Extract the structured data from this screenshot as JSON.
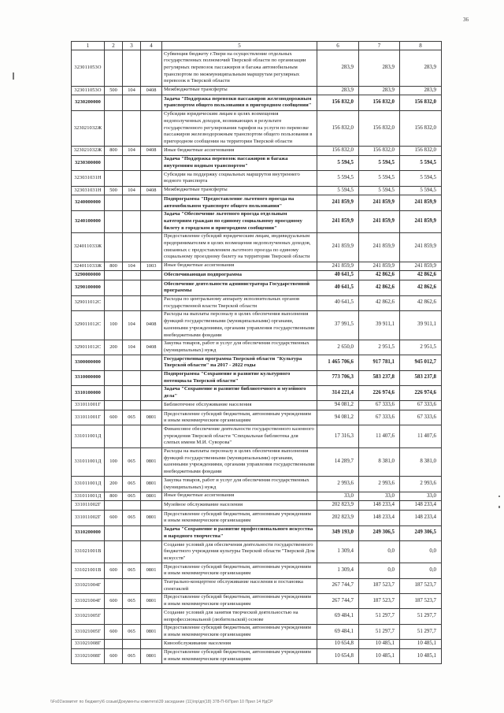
{
  "page_number": "36",
  "footer_path": "\\\\Fs01\\комитет по бюджету\\6 созыв\\Документы комитета\\39 заседание (11)\\пр\\дп(18) 378-П-6\\Прил 10 Прил 14 НдСР",
  "table": {
    "headers": [
      "1",
      "2",
      "3",
      "4",
      "5",
      "6",
      "7",
      "8"
    ],
    "rows": [
      {
        "code": "323011053О",
        "k2": "",
        "k3": "",
        "k4": "",
        "desc": "Субвенция бюджету г.Твери на осуществление отдельных государственных полномочий Тверской области по организации регулярных перевозок пассажиров и багажа автомобильным транспортом по межмуниципальным маршрутам регулярных перевозок в Тверской области",
        "a6": "283,9",
        "a7": "283,9",
        "a8": "283,9",
        "bold": false
      },
      {
        "code": "323011053О",
        "k2": "500",
        "k3": "104",
        "k4": "0408",
        "desc": "Межбюджетные трансферты",
        "a6": "283,9",
        "a7": "283,9",
        "a8": "283,9",
        "bold": false
      },
      {
        "code": "3230200000",
        "k2": "",
        "k3": "",
        "k4": "",
        "desc": "Задача \"Поддержка перевозки пассажиров железнодорожным транспортом общего пользования в пригородном сообщении\"",
        "a6": "156 832,0",
        "a7": "156 832,0",
        "a8": "156 832,0",
        "bold": true
      },
      {
        "code": "323021032Ж",
        "k2": "",
        "k3": "",
        "k4": "",
        "desc": "Субсидии юридическим лицам в целях возмещения недополученных доходов, возникающих в результате государственного регулирования тарифов на услуги по перевозке пассажиров железнодорожным транспортом общего пользования в пригородном сообщении на территории Тверской области",
        "a6": "156 832,0",
        "a7": "156 832,0",
        "a8": "156 832,0",
        "bold": false
      },
      {
        "code": "323021032Ж",
        "k2": "800",
        "k3": "104",
        "k4": "0408",
        "desc": "Иные бюджетные ассигнования",
        "a6": "156 832,0",
        "a7": "156 832,0",
        "a8": "156 832,0",
        "bold": false
      },
      {
        "code": "3230300000",
        "k2": "",
        "k3": "",
        "k4": "",
        "desc": "Задача \"Поддержка перевозок пассажиров и багажа внутренним водным транспортом\"",
        "a6": "5 594,5",
        "a7": "5 594,5",
        "a8": "5 594,5",
        "bold": true
      },
      {
        "code": "323031031Н",
        "k2": "",
        "k3": "",
        "k4": "",
        "desc": "Субсидии на поддержку социальных маршрутов внутреннего водного транспорта",
        "a6": "5 594,5",
        "a7": "5 594,5",
        "a8": "5 594,5",
        "bold": false
      },
      {
        "code": "323031031Н",
        "k2": "500",
        "k3": "104",
        "k4": "0408",
        "desc": "Межбюджетные трансферты",
        "a6": "5 594,5",
        "a7": "5 594,5",
        "a8": "5 594,5",
        "bold": false
      },
      {
        "code": "3240000000",
        "k2": "",
        "k3": "",
        "k4": "",
        "desc": "Подпрограмма \"Предоставление льготного проезда на автомобильном транспорте общего пользования\"",
        "a6": "241 859,9",
        "a7": "241 859,9",
        "a8": "241 859,9",
        "bold": true
      },
      {
        "code": "3240100000",
        "k2": "",
        "k3": "",
        "k4": "",
        "desc": "Задача \"Обеспечение льготного проезда отдельным категориям граждан по единому социальному проездному билету в городском и пригородном сообщении\"",
        "a6": "241 859,9",
        "a7": "241 859,9",
        "a8": "241 859,9",
        "bold": true
      },
      {
        "code": "324011033Ж",
        "k2": "",
        "k3": "",
        "k4": "",
        "desc": "Предоставление субсидий юридическим лицам, индивидуальным предпринимателям в целях возмещения недополученных доходов, связанных с предоставлением льготного проезда по единому социальному проездному билету на территории Тверской области",
        "a6": "241 859,9",
        "a7": "241 859,9",
        "a8": "241 859,9",
        "bold": false
      },
      {
        "code": "324011033Ж",
        "k2": "800",
        "k3": "104",
        "k4": "1003",
        "desc": "Иные бюджетные ассигнования",
        "a6": "241 859,9",
        "a7": "241 859,9",
        "a8": "241 859,9",
        "bold": false
      },
      {
        "code": "3290000000",
        "k2": "",
        "k3": "",
        "k4": "",
        "desc": "Обеспечивающая подпрограмма",
        "a6": "40 641,5",
        "a7": "42 862,6",
        "a8": "42 862,6",
        "bold": true
      },
      {
        "code": "3290100000",
        "k2": "",
        "k3": "",
        "k4": "",
        "desc": "Обеспечение деятельности администратора Государственной программы",
        "a6": "40 641,5",
        "a7": "42 862,6",
        "a8": "42 862,6",
        "bold": true
      },
      {
        "code": "329011012С",
        "k2": "",
        "k3": "",
        "k4": "",
        "desc": "Расходы по центральному аппарату исполнительных органов государственной власти Тверской области",
        "a6": "40 641,5",
        "a7": "42 862,6",
        "a8": "42 862,6",
        "bold": false
      },
      {
        "code": "329011012С",
        "k2": "100",
        "k3": "104",
        "k4": "0408",
        "desc": "Расходы на выплаты персоналу в целях обеспечения выполнения функций государственными (муниципальными) органами, казенными учреждениями, органами управления государственными внебюджетными фондами",
        "a6": "37 991,5",
        "a7": "39 911,1",
        "a8": "39 911,1",
        "bold": false
      },
      {
        "code": "329011012С",
        "k2": "200",
        "k3": "104",
        "k4": "0408",
        "desc": "Закупка товаров, работ и услуг для обеспечения государственных (муниципальных) нужд",
        "a6": "2 650,0",
        "a7": "2 951,5",
        "a8": "2 951,5",
        "bold": false
      },
      {
        "code": "3300000000",
        "k2": "",
        "k3": "",
        "k4": "",
        "desc": "Государственная программа Тверской области \"Культура Тверской области\" на 2017 - 2022 годы",
        "a6": "1 465 706,6",
        "a7": "917 781,1",
        "a8": "945 012,7",
        "bold": true
      },
      {
        "code": "3310000000",
        "k2": "",
        "k3": "",
        "k4": "",
        "desc": "Подпрограмма \"Сохранение и развитие культурного потенциала Тверской области\"",
        "a6": "773 706,3",
        "a7": "583 237,8",
        "a8": "583 237,8",
        "bold": true
      },
      {
        "code": "3310100000",
        "k2": "",
        "k3": "",
        "k4": "",
        "desc": "Задача \"Сохранение и развитие библиотечного и музейного дела\"",
        "a6": "314 221,4",
        "a7": "226 974,6",
        "a8": "226 974,6",
        "bold": true
      },
      {
        "code": "331011001Г",
        "k2": "",
        "k3": "",
        "k4": "",
        "desc": "Библиотечное обслуживание населения",
        "a6": "94 081,2",
        "a7": "67 333,6",
        "a8": "67 333,6",
        "bold": false
      },
      {
        "code": "331011001Г",
        "k2": "600",
        "k3": "065",
        "k4": "0801",
        "desc": "Предоставление субсидий бюджетным, автономным учреждениям и иным некоммерческим организациям",
        "a6": "94 081,2",
        "a7": "67 333,6",
        "a8": "67 333,6",
        "bold": false
      },
      {
        "code": "331011001Д",
        "k2": "",
        "k3": "",
        "k4": "",
        "desc": "Финансовое обеспечение деятельности государственного казенного учреждения Тверской области \"Специальная библиотека для слепых имени М.И. Суворова\"",
        "a6": "17 316,3",
        "a7": "11 407,6",
        "a8": "11 407,6",
        "bold": false
      },
      {
        "code": "331011001Д",
        "k2": "100",
        "k3": "065",
        "k4": "0801",
        "desc": "Расходы на выплаты персоналу в целях обеспечения выполнения функций государственными (муниципальными) органами, казенными учреждениями, органами управления государственными внебюджетными фондами",
        "a6": "14 289,7",
        "a7": "8 381,0",
        "a8": "8 381,0",
        "bold": false
      },
      {
        "code": "331011001Д",
        "k2": "200",
        "k3": "065",
        "k4": "0801",
        "desc": "Закупка товаров, работ и услуг для обеспечения государственных (муниципальных) нужд",
        "a6": "2 993,6",
        "a7": "2 993,6",
        "a8": "2 993,6",
        "bold": false
      },
      {
        "code": "331011001Д",
        "k2": "800",
        "k3": "065",
        "k4": "0801",
        "desc": "Иные бюджетные ассигнования",
        "a6": "33,0",
        "a7": "33,0",
        "a8": "33,0",
        "bold": false
      },
      {
        "code": "331011002Г",
        "k2": "",
        "k3": "",
        "k4": "",
        "desc": "Музейное обслуживание населения",
        "a6": "202 823,9",
        "a7": "148 233,4",
        "a8": "148 233,4",
        "bold": false
      },
      {
        "code": "331011002Г",
        "k2": "600",
        "k3": "065",
        "k4": "0801",
        "desc": "Предоставление субсидий бюджетным, автономным учреждениям и иным некоммерческим организациям",
        "a6": "202 823,9",
        "a7": "148 233,4",
        "a8": "148 233,4",
        "bold": false
      },
      {
        "code": "3310200000",
        "k2": "",
        "k3": "",
        "k4": "",
        "desc": "Задача \"Сохранение и развитие профессионального искусства и народного творчества\"",
        "a6": "349 193,0",
        "a7": "249 306,5",
        "a8": "249 306,5",
        "bold": true
      },
      {
        "code": "331021001В",
        "k2": "",
        "k3": "",
        "k4": "",
        "desc": "Создание условий для обеспечения деятельности государственного бюджетного учреждения культуры Тверской области \"Тверской Дом искусств\"",
        "a6": "1 309,4",
        "a7": "0,0",
        "a8": "0,0",
        "bold": false
      },
      {
        "code": "331021001В",
        "k2": "600",
        "k3": "065",
        "k4": "0801",
        "desc": "Предоставление субсидий бюджетным, автономным учреждениям и иным некоммерческим организациям",
        "a6": "1 309,4",
        "a7": "0,0",
        "a8": "0,0",
        "bold": false
      },
      {
        "code": "331021004Г",
        "k2": "",
        "k3": "",
        "k4": "",
        "desc": "Театрально-концертное обслуживание населения и постановка спектаклей",
        "a6": "267 744,7",
        "a7": "187 523,7",
        "a8": "187 523,7",
        "bold": false
      },
      {
        "code": "331021004Г",
        "k2": "600",
        "k3": "065",
        "k4": "0801",
        "desc": "Предоставление субсидий бюджетным, автономным учреждениям и иным некоммерческим организациям",
        "a6": "267 744,7",
        "a7": "187 523,7",
        "a8": "187 523,7",
        "bold": false
      },
      {
        "code": "331021005Г",
        "k2": "",
        "k3": "",
        "k4": "",
        "desc": "Создание условий для занятия творческой деятельностью на непрофессиональной (любительской) основе",
        "a6": "69 484,1",
        "a7": "51 297,7",
        "a8": "51 297,7",
        "bold": false
      },
      {
        "code": "331021005Г",
        "k2": "600",
        "k3": "065",
        "k4": "0801",
        "desc": "Предоставление субсидий бюджетным, автономным учреждениям и иным некоммерческим организациям",
        "a6": "69 484,1",
        "a7": "51 297,7",
        "a8": "51 297,7",
        "bold": false
      },
      {
        "code": "331021008Г",
        "k2": "",
        "k3": "",
        "k4": "",
        "desc": "Кинообслуживание населения",
        "a6": "10 654,8",
        "a7": "10 485,1",
        "a8": "10 485,1",
        "bold": false
      },
      {
        "code": "331021008Г",
        "k2": "600",
        "k3": "065",
        "k4": "0801",
        "desc": "Предоставление субсидий бюджетным, автономным учреждениям и иным некоммерческим организациям",
        "a6": "10 654,8",
        "a7": "10 485,1",
        "a8": "10 485,1",
        "bold": false
      }
    ]
  }
}
